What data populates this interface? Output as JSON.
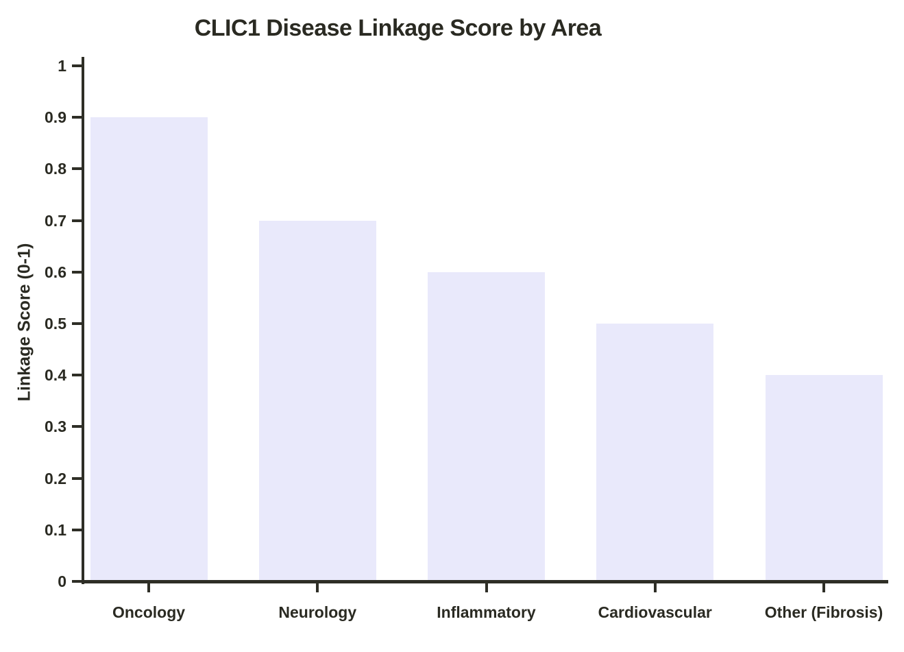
{
  "chart_data": {
    "type": "bar",
    "title": "CLIC1 Disease Linkage Score by Area",
    "ylabel": "Linkage Score (0-1)",
    "xlabel": "",
    "categories": [
      "Oncology",
      "Neurology",
      "Inflammatory",
      "Cardiovascular",
      "Other (Fibrosis)"
    ],
    "values": [
      0.9,
      0.7,
      0.6,
      0.5,
      0.4
    ],
    "ylim": [
      0,
      1
    ],
    "yticks": [
      0,
      0.1,
      0.2,
      0.3,
      0.4,
      0.5,
      0.6,
      0.7,
      0.8,
      0.9,
      1
    ],
    "ytick_labels": [
      "0",
      "0.1",
      "0.2",
      "0.3",
      "0.4",
      "0.5",
      "0.6",
      "0.7",
      "0.8",
      "0.9",
      "1"
    ],
    "grid": false,
    "legend": false,
    "bar_color": "#e9e9fb",
    "axis_color": "#2e2e26",
    "text_color": "#2a2a22",
    "background_color": "#ffffff"
  }
}
